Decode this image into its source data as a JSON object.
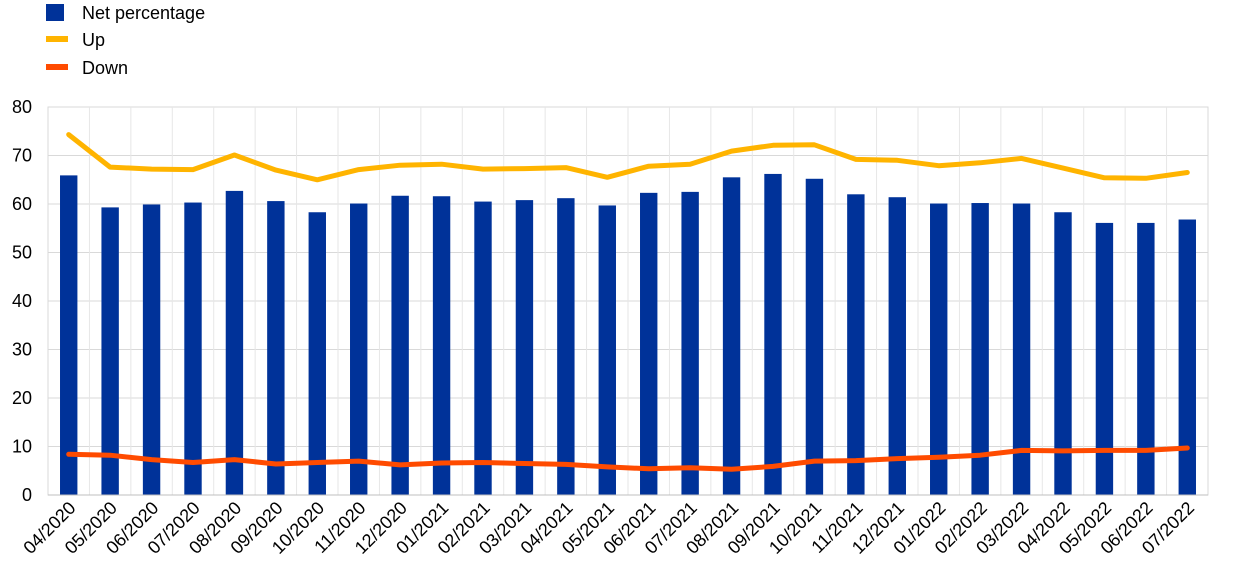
{
  "chart_data": {
    "type": "bar",
    "categories": [
      "04/2020",
      "05/2020",
      "06/2020",
      "07/2020",
      "08/2020",
      "09/2020",
      "10/2020",
      "11/2020",
      "12/2020",
      "01/2021",
      "02/2021",
      "03/2021",
      "04/2021",
      "05/2021",
      "06/2021",
      "07/2021",
      "08/2021",
      "09/2021",
      "10/2021",
      "11/2021",
      "12/2021",
      "01/2022",
      "02/2022",
      "03/2022",
      "04/2022",
      "05/2022",
      "06/2022",
      "07/2022"
    ],
    "series": [
      {
        "name": "Net percentage",
        "type": "bar",
        "color": "#003299",
        "values": [
          65.9,
          59.3,
          59.9,
          60.3,
          62.7,
          60.6,
          58.3,
          60.1,
          61.7,
          61.6,
          60.5,
          60.8,
          61.2,
          59.7,
          62.3,
          62.5,
          65.5,
          66.2,
          65.2,
          62.0,
          61.4,
          60.1,
          60.2,
          60.1,
          58.3,
          56.1,
          56.1,
          56.8
        ]
      },
      {
        "name": "Up",
        "type": "line",
        "color": "#FFB400",
        "values": [
          74.3,
          67.6,
          67.2,
          67.1,
          70.1,
          67.0,
          65.0,
          67.1,
          68.0,
          68.2,
          67.2,
          67.3,
          67.5,
          65.5,
          67.8,
          68.2,
          70.9,
          72.1,
          72.2,
          69.2,
          69.0,
          67.9,
          68.5,
          69.4,
          67.4,
          65.4,
          65.3,
          66.5
        ]
      },
      {
        "name": "Down",
        "type": "line",
        "color": "#FF4B00",
        "values": [
          8.4,
          8.2,
          7.3,
          6.7,
          7.3,
          6.4,
          6.7,
          7.0,
          6.2,
          6.6,
          6.7,
          6.5,
          6.3,
          5.8,
          5.4,
          5.6,
          5.3,
          5.9,
          7.0,
          7.1,
          7.5,
          7.8,
          8.2,
          9.2,
          9.1,
          9.2,
          9.2,
          9.7
        ]
      }
    ],
    "ylim": [
      0,
      80
    ],
    "yticks": [
      0,
      10,
      20,
      30,
      40,
      50,
      60,
      70,
      80
    ],
    "grid": true,
    "legend_position": "top-left",
    "title": "",
    "xlabel": "",
    "ylabel": ""
  }
}
